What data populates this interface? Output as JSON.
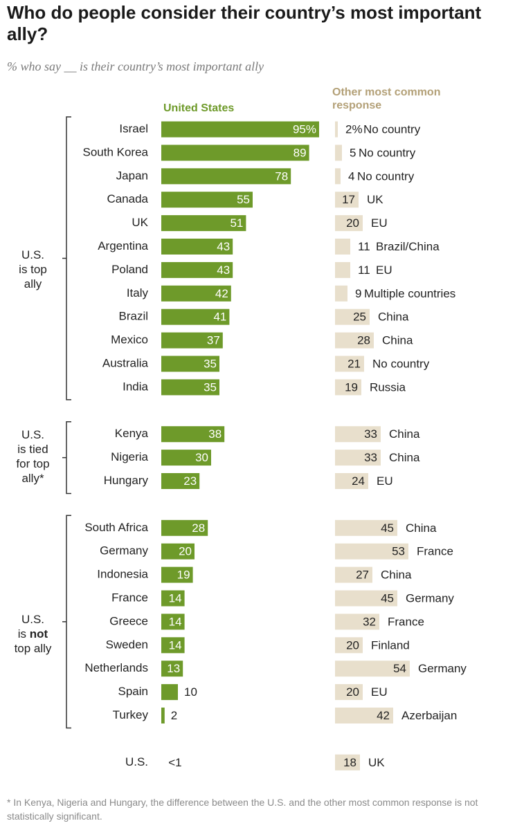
{
  "title": "Who do people consider their country’s most important ally?",
  "subtitle": "% who say __ is their country’s most important ally",
  "col_us": "United States",
  "col_other": "Other most common response",
  "groups": {
    "top": {
      "line1": "U.S.",
      "line2": "is top",
      "line3": "ally"
    },
    "tied": {
      "line1": "U.S.",
      "line2": "is tied",
      "line3": "for top",
      "line4": "ally*"
    },
    "not": {
      "line1": "U.S.",
      "line2_pre": "is",
      "line2_bold": "not",
      "line3": "top ally"
    }
  },
  "footnote": "* In Kenya, Nigeria and Hungary, the difference between the U.S. and the other most common response is not statistically significant.",
  "colors": {
    "us": "#6e9a2a",
    "other": "#e8dfcc",
    "other_header": "#b3a077"
  },
  "chart_data": {
    "type": "bar",
    "title": "Who do people consider their country’s most important ally?",
    "series": [
      {
        "name": "United States",
        "values": [
          95,
          89,
          78,
          55,
          51,
          43,
          43,
          42,
          41,
          37,
          35,
          35,
          38,
          30,
          23,
          28,
          20,
          19,
          14,
          14,
          14,
          13,
          10,
          2,
          0.5
        ]
      },
      {
        "name": "Other most common response",
        "values": [
          2,
          5,
          4,
          17,
          20,
          11,
          11,
          9,
          25,
          28,
          21,
          19,
          33,
          33,
          24,
          45,
          53,
          27,
          45,
          32,
          20,
          54,
          20,
          42,
          18
        ]
      }
    ],
    "rows": [
      {
        "country": "Israel",
        "group": "top",
        "us": 95,
        "us_label": "95%",
        "other": 2,
        "other_label": "2%",
        "other_name": "No country"
      },
      {
        "country": "South Korea",
        "group": "top",
        "us": 89,
        "us_label": "89",
        "other": 5,
        "other_label": "5",
        "other_name": "No country"
      },
      {
        "country": "Japan",
        "group": "top",
        "us": 78,
        "us_label": "78",
        "other": 4,
        "other_label": "4",
        "other_name": "No country"
      },
      {
        "country": "Canada",
        "group": "top",
        "us": 55,
        "us_label": "55",
        "other": 17,
        "other_label": "17",
        "other_name": "UK"
      },
      {
        "country": "UK",
        "group": "top",
        "us": 51,
        "us_label": "51",
        "other": 20,
        "other_label": "20",
        "other_name": "EU"
      },
      {
        "country": "Argentina",
        "group": "top",
        "us": 43,
        "us_label": "43",
        "other": 11,
        "other_label": "11",
        "other_name": "Brazil/China"
      },
      {
        "country": "Poland",
        "group": "top",
        "us": 43,
        "us_label": "43",
        "other": 11,
        "other_label": "11",
        "other_name": "EU"
      },
      {
        "country": "Italy",
        "group": "top",
        "us": 42,
        "us_label": "42",
        "other": 9,
        "other_label": "9",
        "other_name": "Multiple countries"
      },
      {
        "country": "Brazil",
        "group": "top",
        "us": 41,
        "us_label": "41",
        "other": 25,
        "other_label": "25",
        "other_name": "China"
      },
      {
        "country": "Mexico",
        "group": "top",
        "us": 37,
        "us_label": "37",
        "other": 28,
        "other_label": "28",
        "other_name": "China"
      },
      {
        "country": "Australia",
        "group": "top",
        "us": 35,
        "us_label": "35",
        "other": 21,
        "other_label": "21",
        "other_name": "No country"
      },
      {
        "country": "India",
        "group": "top",
        "us": 35,
        "us_label": "35",
        "other": 19,
        "other_label": "19",
        "other_name": "Russia"
      },
      {
        "country": "Kenya",
        "group": "tied",
        "us": 38,
        "us_label": "38",
        "other": 33,
        "other_label": "33",
        "other_name": "China"
      },
      {
        "country": "Nigeria",
        "group": "tied",
        "us": 30,
        "us_label": "30",
        "other": 33,
        "other_label": "33",
        "other_name": "China"
      },
      {
        "country": "Hungary",
        "group": "tied",
        "us": 23,
        "us_label": "23",
        "other": 24,
        "other_label": "24",
        "other_name": "EU"
      },
      {
        "country": "South Africa",
        "group": "not",
        "us": 28,
        "us_label": "28",
        "other": 45,
        "other_label": "45",
        "other_name": "China"
      },
      {
        "country": "Germany",
        "group": "not",
        "us": 20,
        "us_label": "20",
        "other": 53,
        "other_label": "53",
        "other_name": "France"
      },
      {
        "country": "Indonesia",
        "group": "not",
        "us": 19,
        "us_label": "19",
        "other": 27,
        "other_label": "27",
        "other_name": "China"
      },
      {
        "country": "France",
        "group": "not",
        "us": 14,
        "us_label": "14",
        "other": 45,
        "other_label": "45",
        "other_name": "Germany"
      },
      {
        "country": "Greece",
        "group": "not",
        "us": 14,
        "us_label": "14",
        "other": 32,
        "other_label": "32",
        "other_name": "France"
      },
      {
        "country": "Sweden",
        "group": "not",
        "us": 14,
        "us_label": "14",
        "other": 20,
        "other_label": "20",
        "other_name": "Finland"
      },
      {
        "country": "Netherlands",
        "group": "not",
        "us": 13,
        "us_label": "13",
        "other": 54,
        "other_label": "54",
        "other_name": "Germany"
      },
      {
        "country": "Spain",
        "group": "not",
        "us": 10,
        "us_label": "10",
        "other": 20,
        "other_label": "20",
        "other_name": "EU"
      },
      {
        "country": "Turkey",
        "group": "not",
        "us": 2,
        "us_label": "2",
        "other": 42,
        "other_label": "42",
        "other_name": "Azerbaijan"
      },
      {
        "country": "U.S.",
        "group": "none",
        "us": 0.5,
        "us_label": "<1",
        "other": 18,
        "other_label": "18",
        "other_name": "UK"
      }
    ]
  }
}
